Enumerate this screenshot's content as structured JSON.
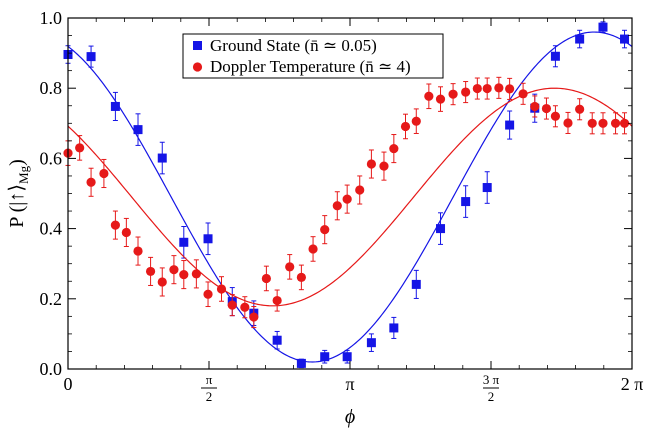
{
  "chart_data": {
    "type": "scatter",
    "title": "",
    "xlabel": "ϕ",
    "ylabel": "P (|↑⟩Mg)",
    "ylabel_parts": {
      "main": "P (|↑⟩",
      "subscript": "Mg",
      "close": ")"
    },
    "xlim": [
      0,
      6.2832
    ],
    "ylim": [
      0,
      1.0
    ],
    "xticks": [
      {
        "value": 0,
        "label": "0"
      },
      {
        "value": 1.5708,
        "label_num": "π",
        "label_den": "2"
      },
      {
        "value": 3.1416,
        "label": "π"
      },
      {
        "value": 4.7124,
        "label_num": "3 π",
        "label_den": "2"
      },
      {
        "value": 6.2832,
        "label": "2 π"
      }
    ],
    "yticks": [
      {
        "value": 0,
        "label": "0.0"
      },
      {
        "value": 0.2,
        "label": "0.2"
      },
      {
        "value": 0.4,
        "label": "0.4"
      },
      {
        "value": 0.6,
        "label": "0.6"
      },
      {
        "value": 0.8,
        "label": "0.8"
      },
      {
        "value": 1.0,
        "label": "1.0"
      }
    ],
    "grid": false,
    "legend_position": "top-center",
    "series": [
      {
        "name": "Ground State (n̄ ≃ 0.05)",
        "marker": "square",
        "color": "#1515e6",
        "x": [
          0.0,
          0.257,
          0.528,
          0.78,
          1.05,
          1.29,
          1.56,
          1.83,
          2.07,
          2.33,
          2.6,
          2.86,
          3.11,
          3.38,
          3.63,
          3.88,
          4.15,
          4.43,
          4.67,
          4.92,
          5.2,
          5.43,
          5.7,
          5.96,
          6.2
        ],
        "y": [
          0.896,
          0.89,
          0.748,
          0.682,
          0.601,
          0.361,
          0.371,
          0.192,
          0.159,
          0.082,
          0.016,
          0.035,
          0.035,
          0.075,
          0.117,
          0.241,
          0.4,
          0.477,
          0.517,
          0.695,
          0.743,
          0.891,
          0.94,
          0.974,
          0.94
        ],
        "err": [
          0.025,
          0.03,
          0.04,
          0.045,
          0.045,
          0.045,
          0.045,
          0.04,
          0.035,
          0.025,
          0.012,
          0.018,
          0.018,
          0.025,
          0.03,
          0.04,
          0.045,
          0.045,
          0.045,
          0.04,
          0.04,
          0.03,
          0.025,
          0.015,
          0.025
        ],
        "fit": {
          "offset": 0.49,
          "amplitude": 0.47,
          "phase_min_x": 2.72
        }
      },
      {
        "name": "Doppler Temperature (n̄ ≃ 4)",
        "marker": "circle",
        "color": "#e61919",
        "x": [
          0.0,
          0.13,
          0.257,
          0.4,
          0.528,
          0.65,
          0.78,
          0.92,
          1.05,
          1.18,
          1.29,
          1.43,
          1.56,
          1.71,
          1.83,
          1.97,
          2.07,
          2.21,
          2.33,
          2.47,
          2.6,
          2.73,
          2.86,
          3.0,
          3.11,
          3.25,
          3.38,
          3.52,
          3.63,
          3.76,
          3.88,
          4.02,
          4.15,
          4.29,
          4.43,
          4.56,
          4.67,
          4.8,
          4.92,
          5.07,
          5.2,
          5.33,
          5.43,
          5.57,
          5.7,
          5.84,
          5.96,
          6.1,
          6.2
        ],
        "y": [
          0.615,
          0.63,
          0.532,
          0.557,
          0.41,
          0.389,
          0.336,
          0.278,
          0.248,
          0.283,
          0.269,
          0.271,
          0.213,
          0.228,
          0.182,
          0.176,
          0.148,
          0.258,
          0.195,
          0.291,
          0.261,
          0.342,
          0.397,
          0.465,
          0.484,
          0.51,
          0.584,
          0.578,
          0.628,
          0.691,
          0.706,
          0.777,
          0.769,
          0.783,
          0.789,
          0.799,
          0.799,
          0.801,
          0.798,
          0.784,
          0.748,
          0.742,
          0.72,
          0.701,
          0.74,
          0.7,
          0.7,
          0.7,
          0.7
        ],
        "err": [
          0.035,
          0.035,
          0.04,
          0.04,
          0.04,
          0.04,
          0.04,
          0.04,
          0.04,
          0.04,
          0.04,
          0.04,
          0.035,
          0.035,
          0.03,
          0.03,
          0.03,
          0.035,
          0.03,
          0.035,
          0.035,
          0.035,
          0.04,
          0.04,
          0.04,
          0.04,
          0.04,
          0.04,
          0.04,
          0.035,
          0.035,
          0.035,
          0.035,
          0.03,
          0.03,
          0.03,
          0.03,
          0.03,
          0.03,
          0.03,
          0.03,
          0.03,
          0.03,
          0.03,
          0.03,
          0.03,
          0.03,
          0.03,
          0.03
        ],
        "fit": {
          "offset": 0.49,
          "amplitude": 0.31,
          "phase_min_x": 2.28
        }
      }
    ]
  }
}
